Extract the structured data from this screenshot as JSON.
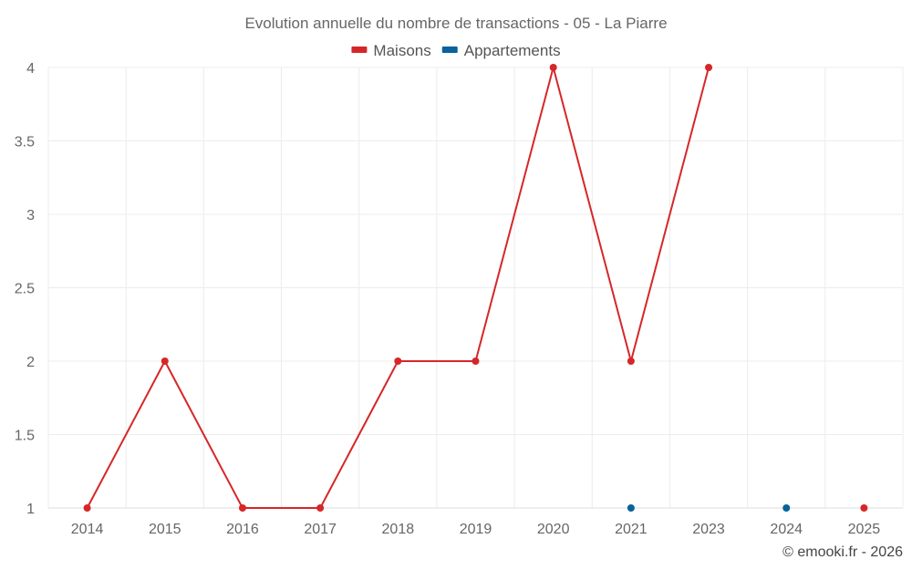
{
  "chart_data": {
    "type": "line",
    "title": "Evolution annuelle du nombre de transactions - 05 - La Piarre",
    "categories": [
      "2014",
      "2015",
      "2016",
      "2017",
      "2018",
      "2019",
      "2020",
      "2021",
      "2023",
      "2024",
      "2025"
    ],
    "series": [
      {
        "name": "Maisons",
        "color": "#d62728",
        "values": [
          1,
          2,
          1,
          1,
          2,
          2,
          4,
          2,
          4,
          null,
          1
        ]
      },
      {
        "name": "Appartements",
        "color": "#08629b",
        "values": [
          null,
          null,
          null,
          null,
          null,
          null,
          null,
          1,
          null,
          1,
          null
        ]
      }
    ],
    "ylim": [
      1,
      4
    ],
    "yticks": [
      "1",
      "1.5",
      "2",
      "2.5",
      "3",
      "3.5",
      "4"
    ],
    "ytick_values": [
      1,
      1.5,
      2,
      2.5,
      3,
      3.5,
      4
    ],
    "grid": true,
    "legend_position": "top-center",
    "credit": "© emooki.fr - 2026"
  }
}
